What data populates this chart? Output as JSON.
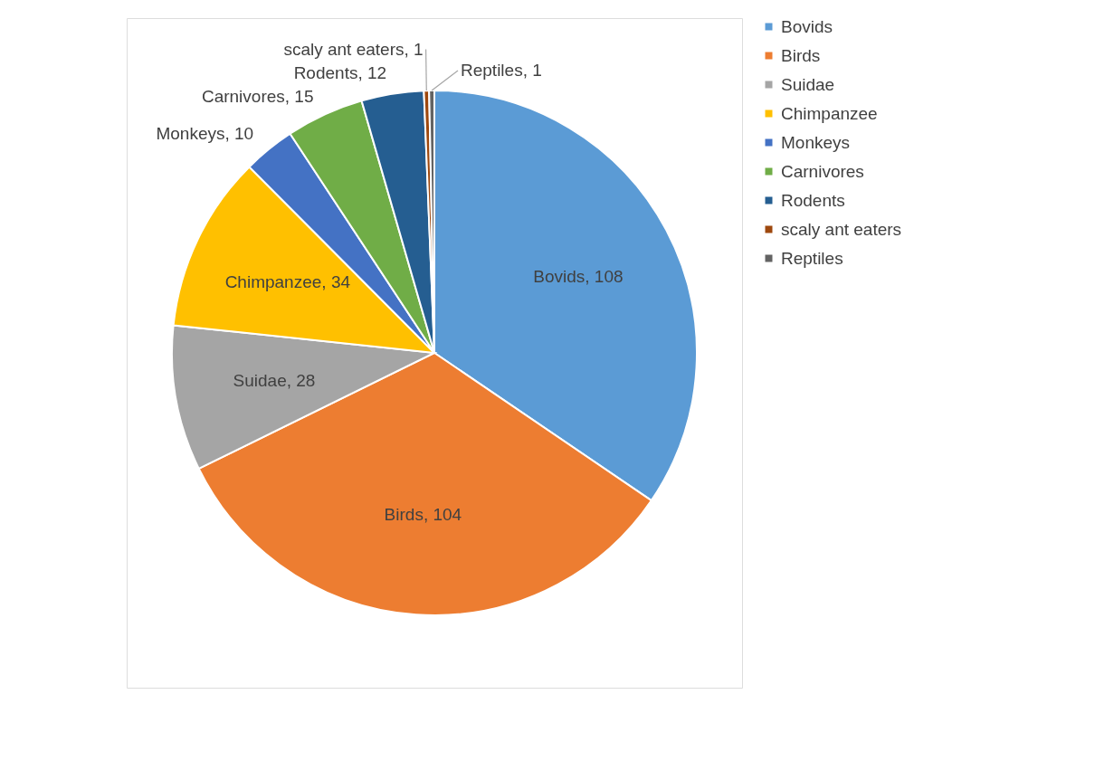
{
  "chart_data": {
    "type": "pie",
    "categories": [
      "Bovids",
      "Birds",
      "Suidae",
      "Chimpanzee",
      "Monkeys",
      "Carnivores",
      "Rodents",
      "scaly ant eaters",
      "Reptiles"
    ],
    "values": [
      108,
      104,
      28,
      34,
      10,
      15,
      12,
      1,
      1
    ],
    "colors": [
      "#5b9bd5",
      "#ed7d31",
      "#a5a5a5",
      "#ffc000",
      "#4472c4",
      "#70ad47",
      "#255e91",
      "#9e480e",
      "#636363"
    ],
    "value_labels": [
      "Bovids, 108",
      "Birds, 104",
      "Suidae, 28",
      "Chimpanzee, 34",
      "Monkeys, 10",
      "Carnivores, 15",
      "Rodents, 12",
      "scaly ant eaters, 1",
      "Reptiles, 1"
    ],
    "legend": "right"
  }
}
